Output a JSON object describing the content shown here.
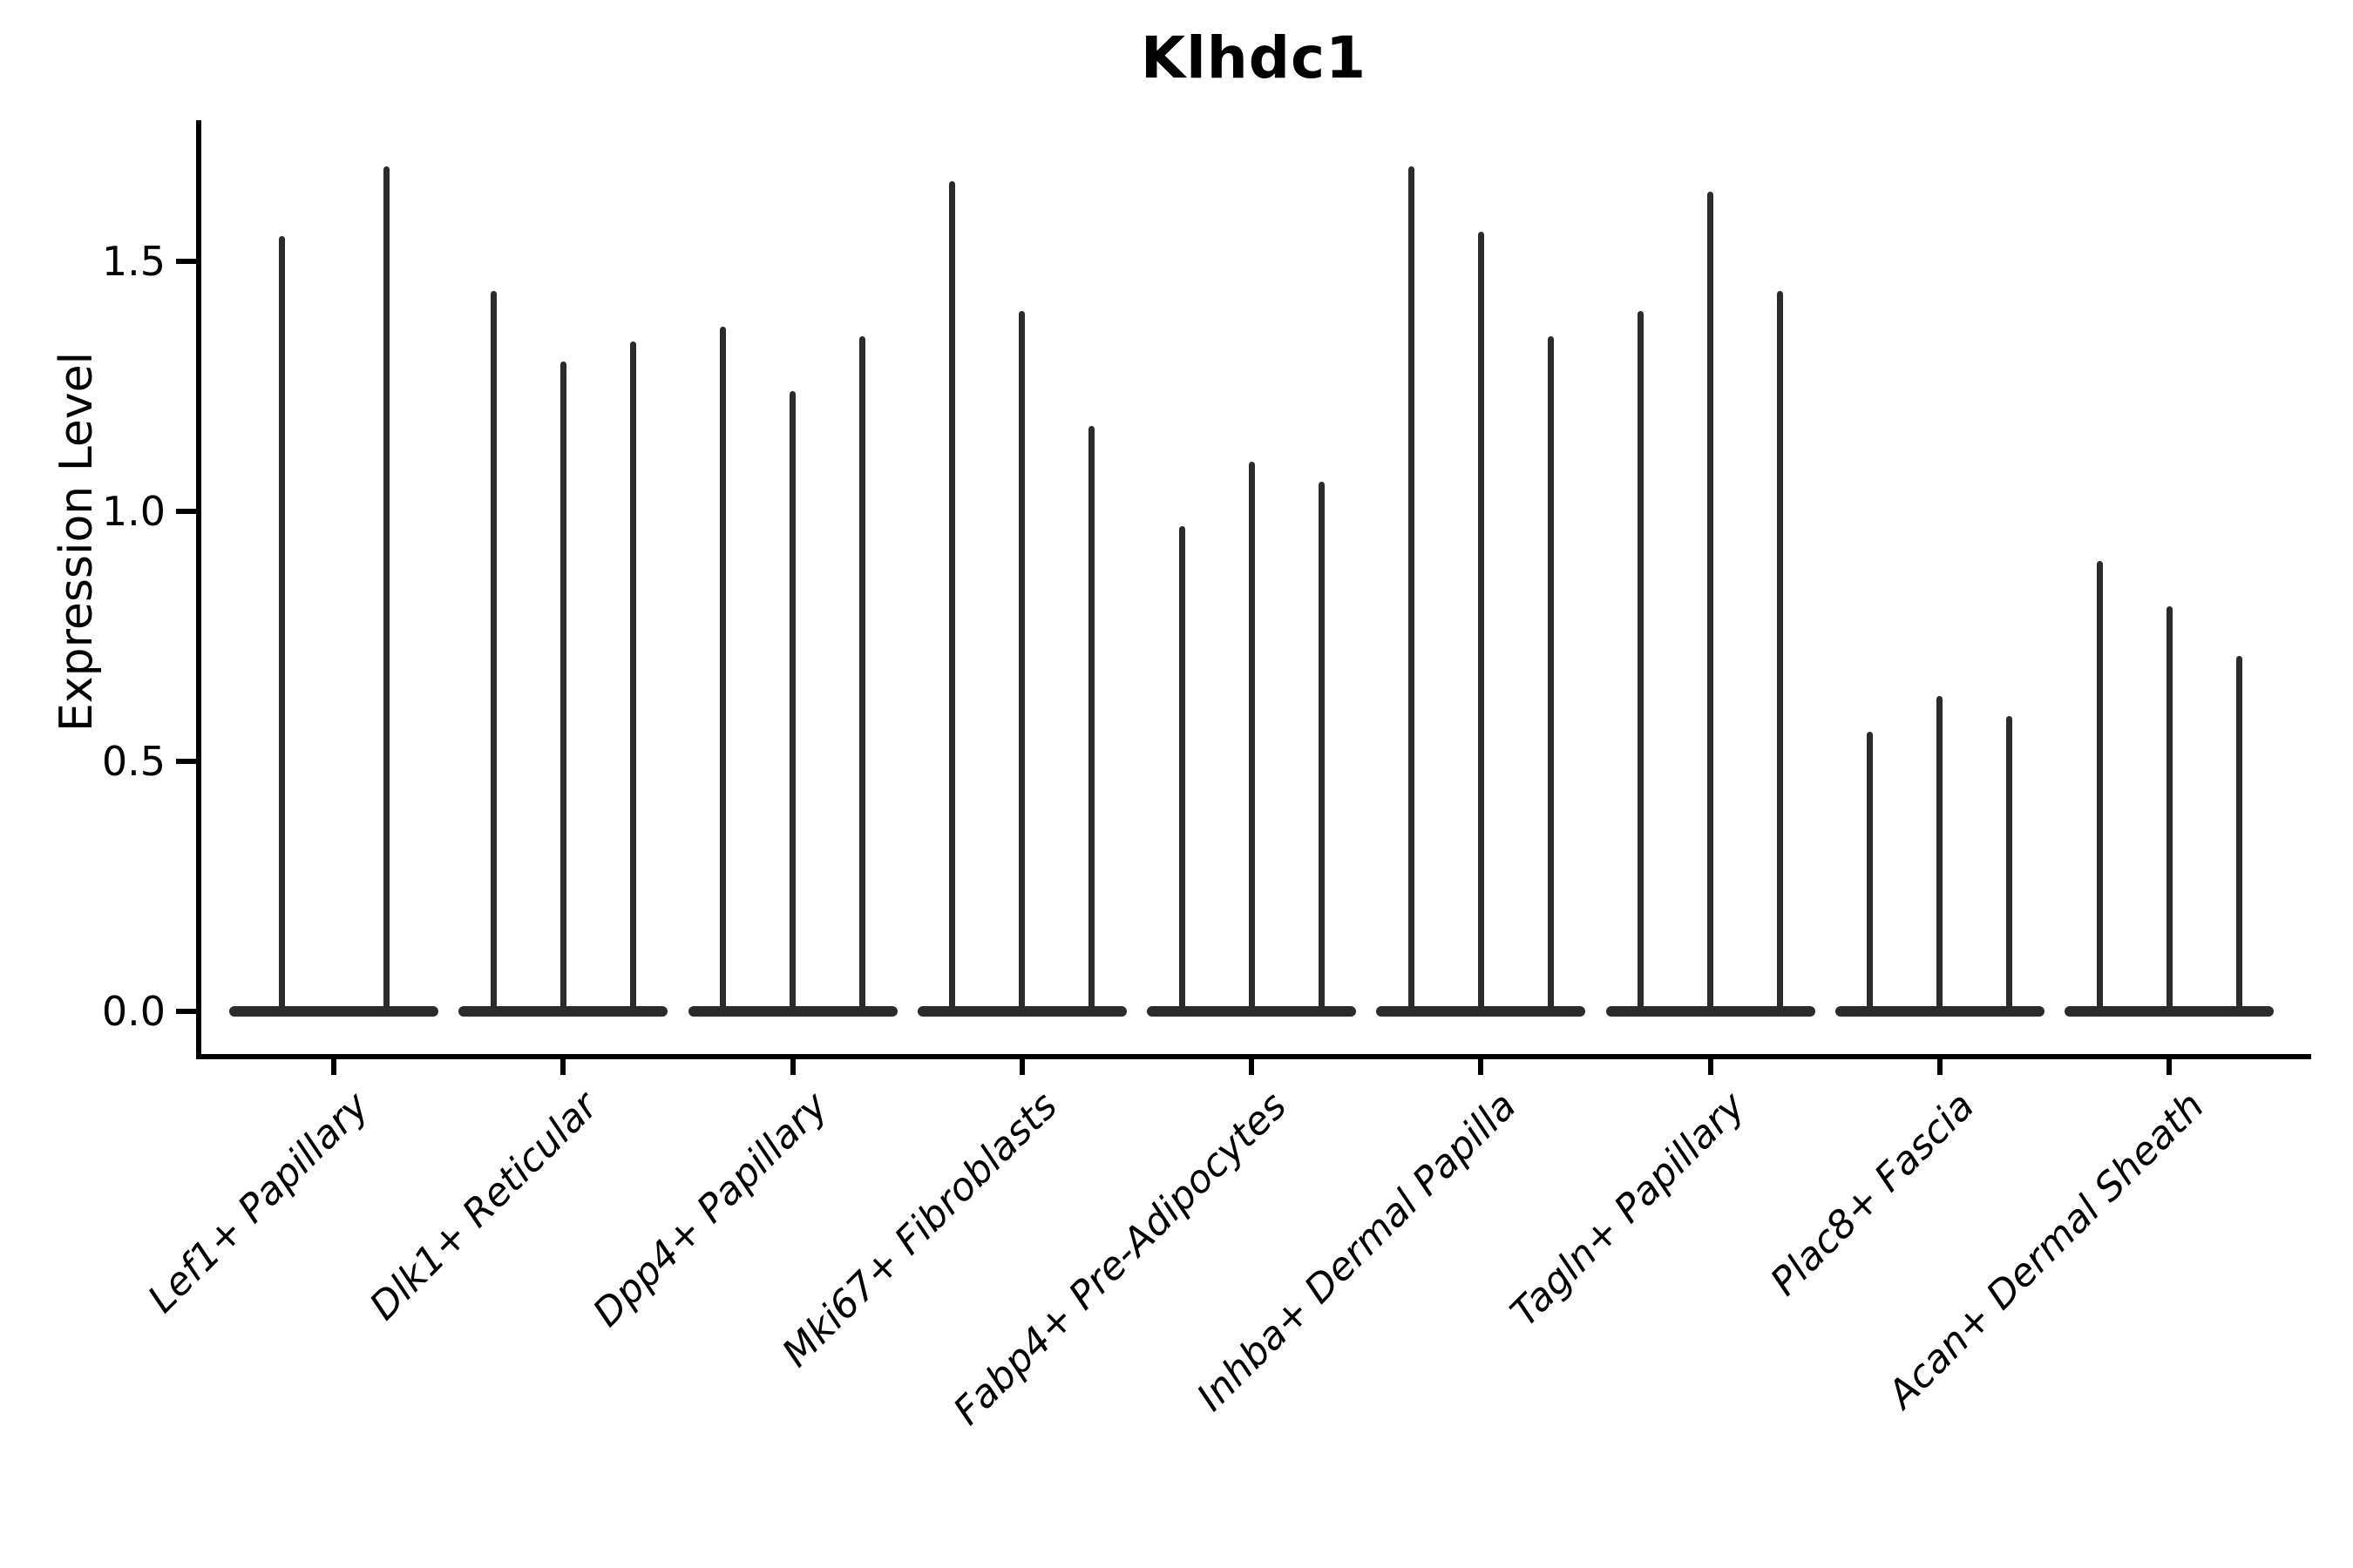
{
  "chart_data": {
    "type": "violin",
    "title": "Klhdc1",
    "ylabel": "Expression Level",
    "xlabel": "",
    "yticks": [
      0.0,
      0.5,
      1.0,
      1.5
    ],
    "ylim": [
      0.0,
      1.78
    ],
    "grid": false,
    "legend": "none",
    "style": "collapsed violins: flat bulge at 0 with a thin vertical spike up to the max expression value",
    "groups": [
      {
        "label": "Lef1+ Papillary",
        "violin_maxima": [
          1.55,
          1.69
        ]
      },
      {
        "label": "Dlk1+ Reticular",
        "violin_maxima": [
          1.44,
          1.3,
          1.34
        ]
      },
      {
        "label": "Dpp4+ Papillary",
        "violin_maxima": [
          1.37,
          1.24,
          1.35
        ]
      },
      {
        "label": "Mki67+ Fibroblasts",
        "violin_maxima": [
          1.66,
          1.4,
          1.17
        ]
      },
      {
        "label": "Fabp4+ Pre-Adipocytes",
        "violin_maxima": [
          0.97,
          1.1,
          1.06
        ]
      },
      {
        "label": "Inhba+ Dermal Papilla",
        "violin_maxima": [
          1.69,
          1.56,
          1.35
        ]
      },
      {
        "label": "Tagln+ Papillary",
        "violin_maxima": [
          1.4,
          1.64,
          1.44
        ]
      },
      {
        "label": "Plac8+ Fascia",
        "violin_maxima": [
          0.56,
          0.63,
          0.59
        ]
      },
      {
        "label": "Acan+ Dermal Sheath",
        "violin_maxima": [
          0.9,
          0.81,
          0.71
        ]
      }
    ],
    "colors": {
      "violin": "#2b2b2b",
      "axis": "#000000",
      "text": "#000000"
    }
  }
}
